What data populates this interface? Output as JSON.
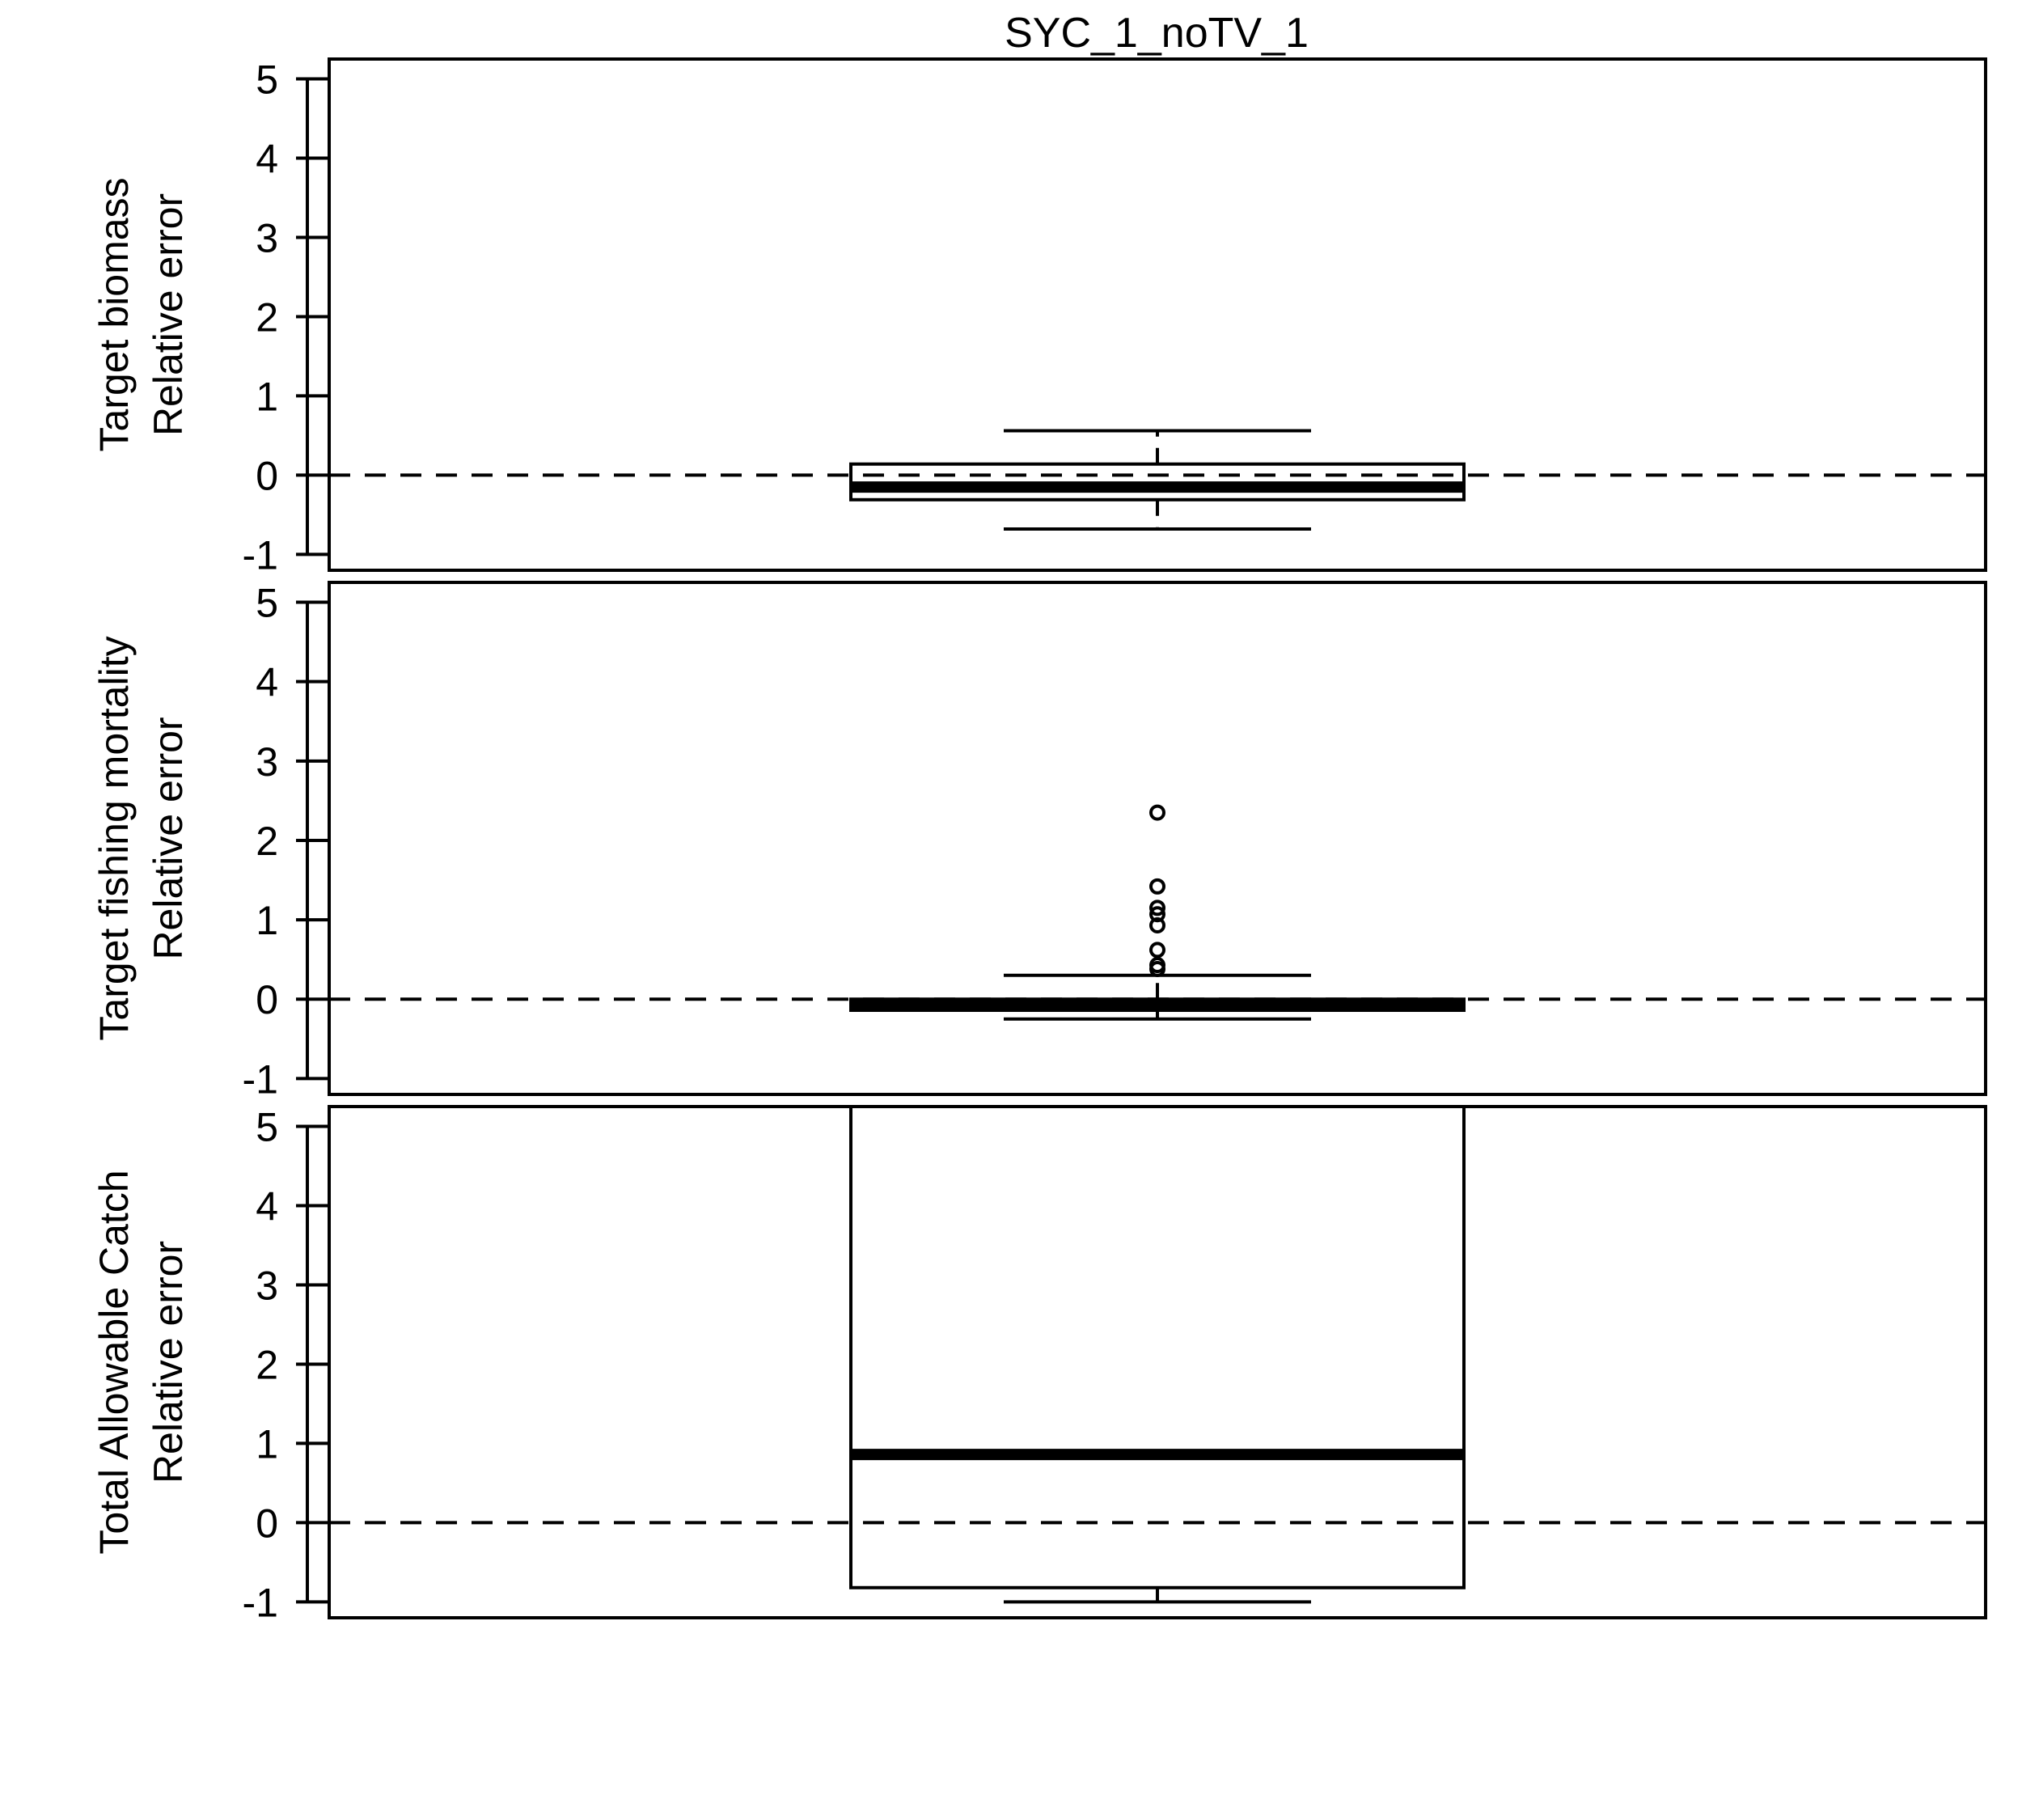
{
  "title": "SYC_1_noTV_1",
  "colors": {
    "ink": "#000000",
    "background": "#ffffff"
  },
  "chart_data": [
    {
      "type": "boxplot",
      "ylabel": [
        "Target biomass",
        "Relative error"
      ],
      "ylim": [
        -1.2,
        5.25
      ],
      "yticks": [
        -1,
        0,
        1,
        2,
        3,
        4,
        5
      ],
      "reference_line": {
        "y": 0,
        "style": "dashed"
      },
      "box": {
        "whisker_low": -0.68,
        "q1": -0.31,
        "median": -0.15,
        "q3": 0.14,
        "whisker_high": 0.56,
        "outliers": []
      }
    },
    {
      "type": "boxplot",
      "ylabel": [
        "Target fishing mortality",
        "Relative error"
      ],
      "ylim": [
        -1.2,
        5.25
      ],
      "yticks": [
        -1,
        0,
        1,
        2,
        3,
        4,
        5
      ],
      "reference_line": {
        "y": 0,
        "style": "dashed"
      },
      "box": {
        "whisker_low": -0.25,
        "q1": -0.14,
        "median": -0.08,
        "q3": 0.0,
        "whisker_high": 0.3,
        "outliers": [
          0.38,
          0.43,
          0.62,
          0.93,
          1.07,
          1.15,
          1.42,
          2.35
        ]
      }
    },
    {
      "type": "boxplot",
      "ylabel": [
        "Total Allowable Catch",
        "Relative error"
      ],
      "ylim": [
        -1.2,
        5.25
      ],
      "yticks": [
        -1,
        0,
        1,
        2,
        3,
        4,
        5
      ],
      "reference_line": {
        "y": 0,
        "style": "dashed"
      },
      "box": {
        "whisker_low": -1.0,
        "q1": -0.82,
        "median": 0.86,
        "q3": 5.5,
        "whisker_high": null,
        "outliers": []
      }
    }
  ]
}
